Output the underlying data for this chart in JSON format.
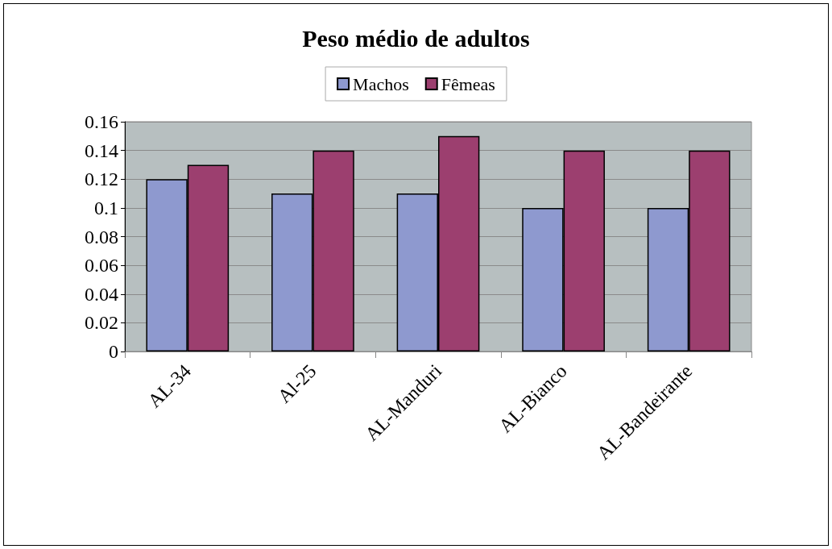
{
  "chart_data": {
    "type": "bar",
    "title": "Peso médio de adultos",
    "categories": [
      "AL-34",
      "Al-25",
      "AL-Manduri",
      "AL-Bianco",
      "AL-Bandeirante"
    ],
    "series": [
      {
        "name": "Machos",
        "color": "#8e99cf",
        "values": [
          0.12,
          0.11,
          0.11,
          0.1,
          0.1
        ]
      },
      {
        "name": "Fêmeas",
        "color": "#9c3f6f",
        "values": [
          0.13,
          0.14,
          0.15,
          0.14,
          0.14
        ]
      }
    ],
    "ylim": [
      0,
      0.16
    ],
    "yticks": [
      0,
      0.02,
      0.04,
      0.06,
      0.08,
      0.1,
      0.12,
      0.14,
      0.16
    ],
    "grid": "y",
    "legend": "top"
  }
}
